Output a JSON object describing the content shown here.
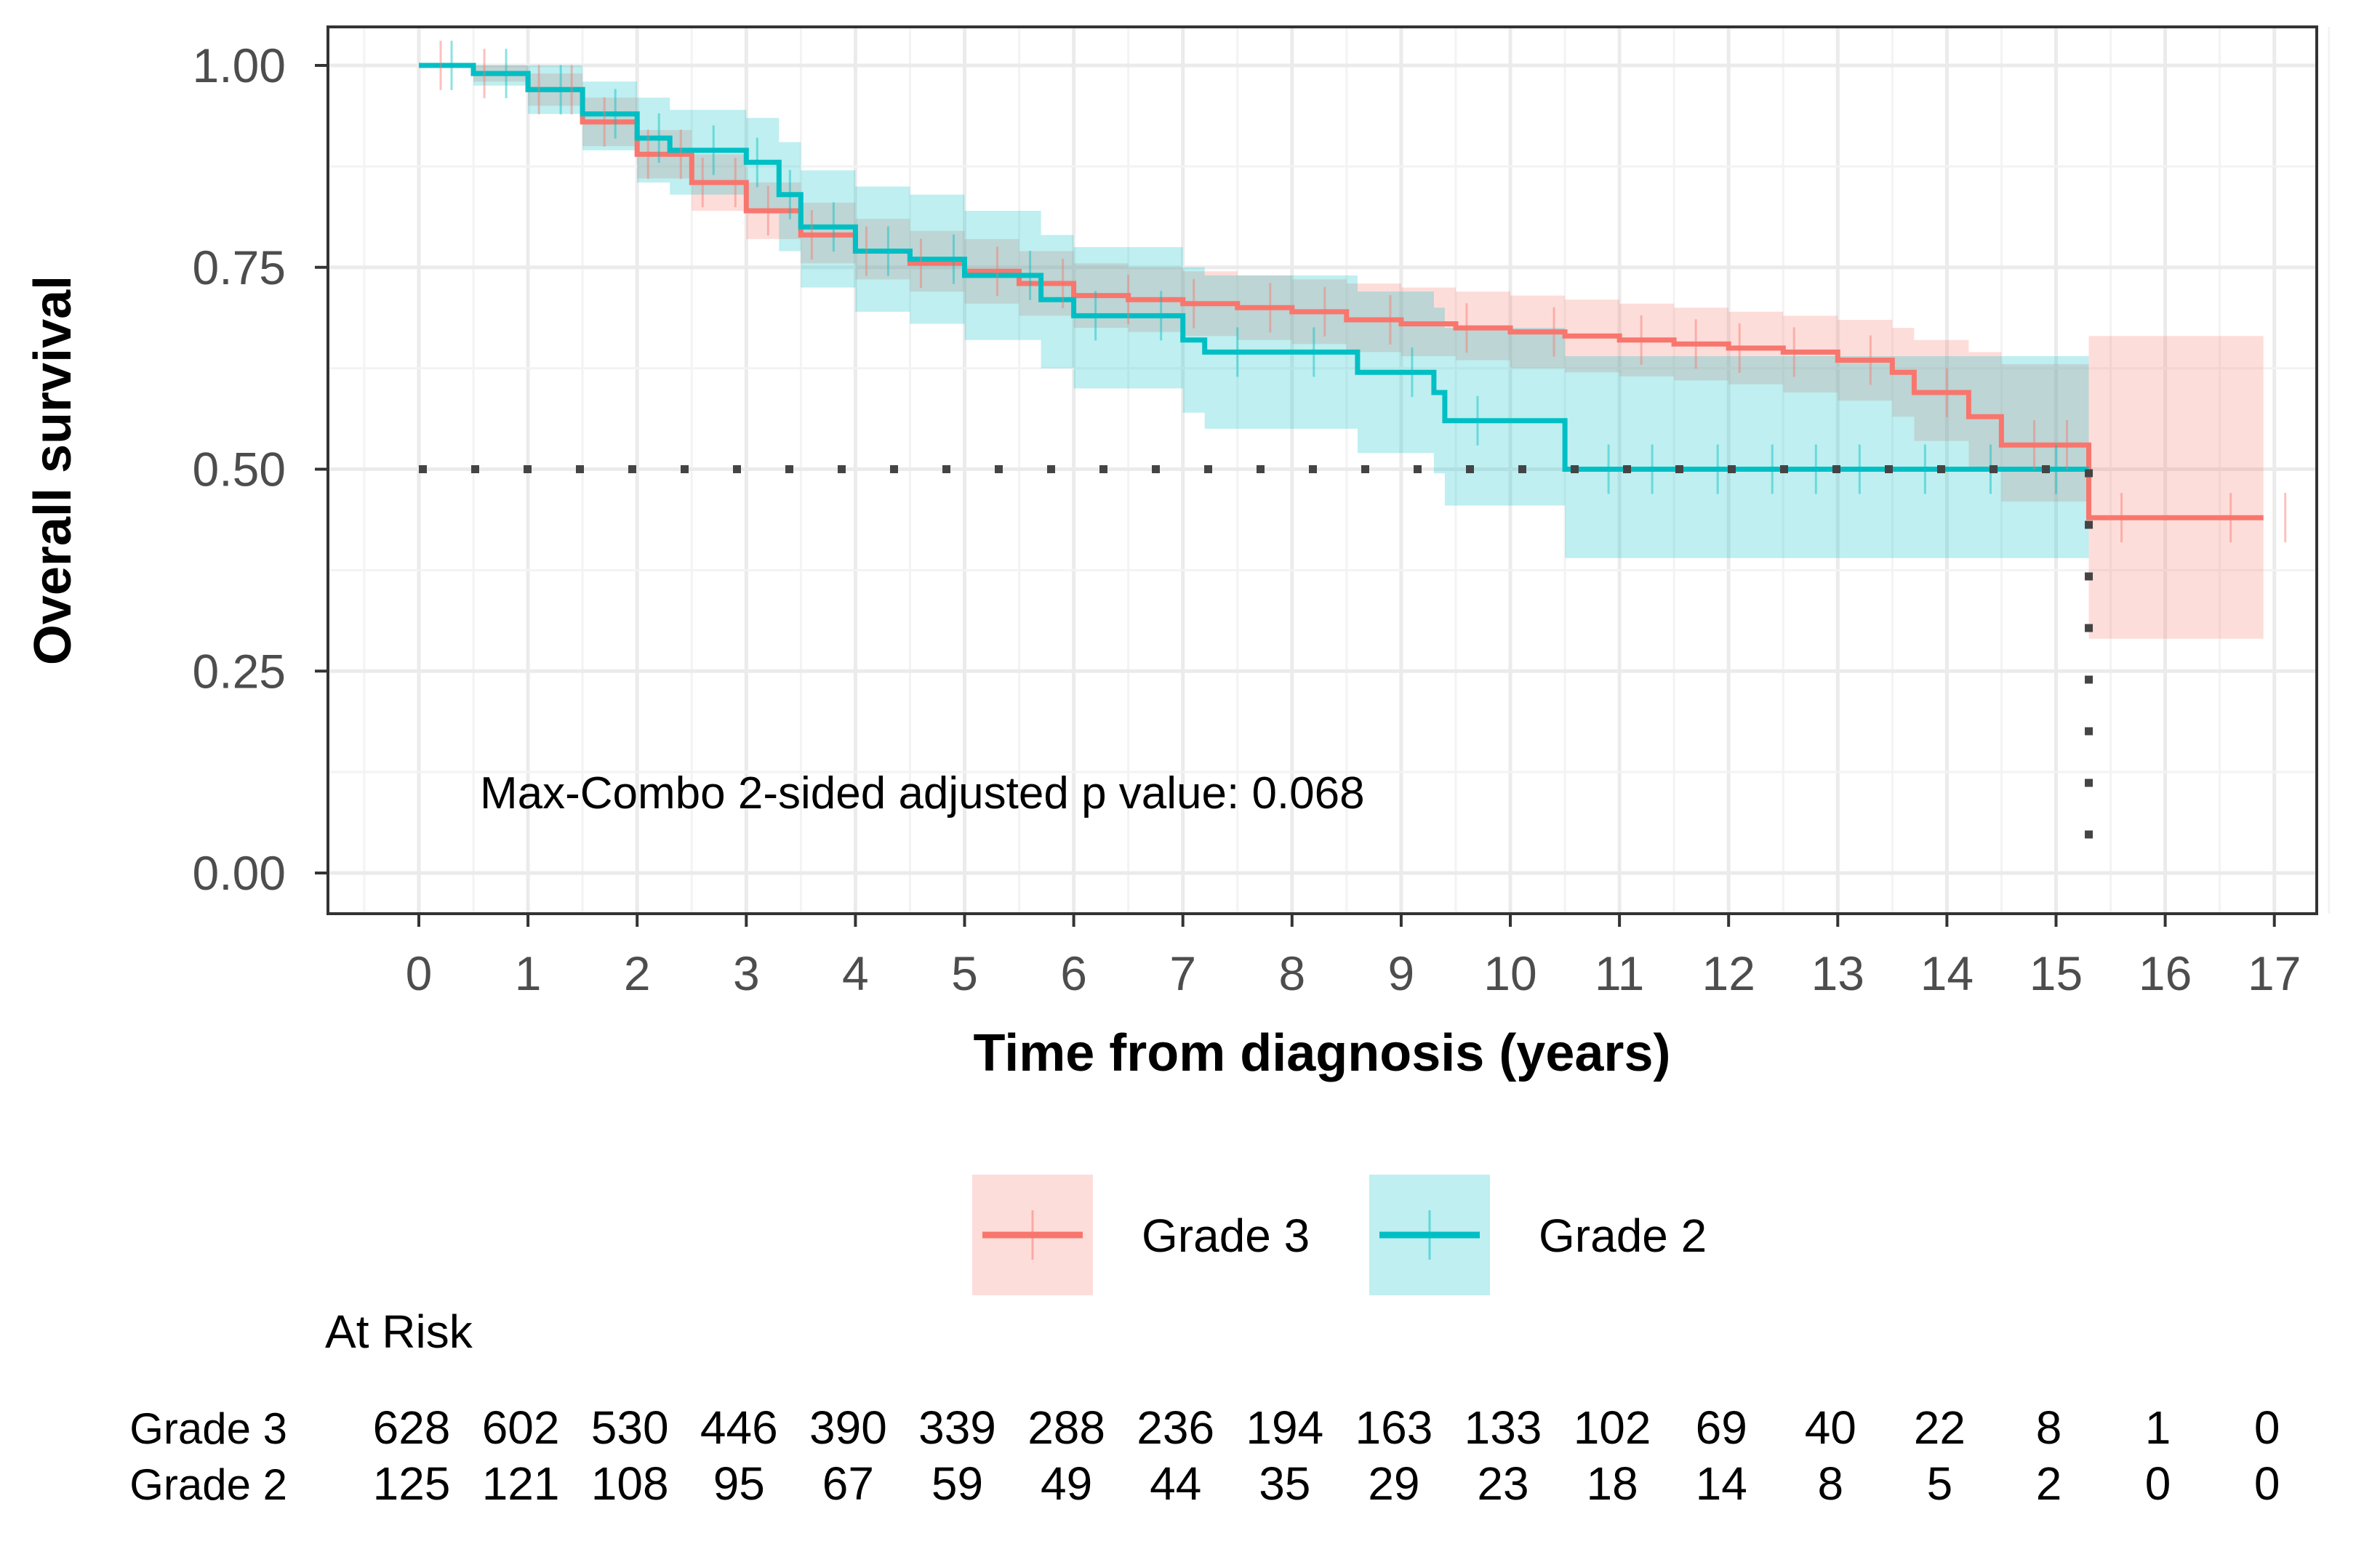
{
  "chart_data": {
    "type": "line",
    "subtype": "kaplan-meier",
    "title": "",
    "xlabel": "Time from diagnosis (years)",
    "ylabel": "Overall survival",
    "xlim": [
      -0.8,
      17.4
    ],
    "ylim": [
      -0.05,
      1.05
    ],
    "x_ticks": [
      "0",
      "1",
      "2",
      "3",
      "4",
      "5",
      "6",
      "7",
      "8",
      "9",
      "10",
      "11",
      "12",
      "13",
      "14",
      "15",
      "16",
      "17"
    ],
    "y_ticks": [
      "0.00",
      "0.25",
      "0.50",
      "0.75",
      "1.00"
    ],
    "grid": true,
    "annotation": "Max-Combo 2-sided adjusted p value: 0.068",
    "median_line": {
      "y": 0.5,
      "x_from": 0,
      "x_to": 15.3
    },
    "legend": {
      "position": "bottom",
      "entries": [
        "Grade 3",
        "Grade 2"
      ]
    },
    "series": [
      {
        "name": "Grade 3",
        "color": "#F8766D",
        "band_color": "#F8766D",
        "steps": [
          [
            0,
            1.0
          ],
          [
            0.5,
            0.99
          ],
          [
            1,
            0.97
          ],
          [
            1.5,
            0.93
          ],
          [
            2,
            0.89
          ],
          [
            2.5,
            0.855
          ],
          [
            3,
            0.82
          ],
          [
            3.5,
            0.79
          ],
          [
            4,
            0.77
          ],
          [
            4.5,
            0.755
          ],
          [
            5,
            0.745
          ],
          [
            5.5,
            0.73
          ],
          [
            6,
            0.715
          ],
          [
            6.5,
            0.71
          ],
          [
            7,
            0.705
          ],
          [
            7.5,
            0.7
          ],
          [
            8,
            0.695
          ],
          [
            8.5,
            0.685
          ],
          [
            9,
            0.68
          ],
          [
            9.5,
            0.675
          ],
          [
            10,
            0.67
          ],
          [
            10.5,
            0.665
          ],
          [
            11,
            0.66
          ],
          [
            11.5,
            0.655
          ],
          [
            12,
            0.65
          ],
          [
            12.5,
            0.645
          ],
          [
            13,
            0.635
          ],
          [
            13.5,
            0.62
          ],
          [
            13.7,
            0.595
          ],
          [
            14.2,
            0.565
          ],
          [
            14.5,
            0.53
          ],
          [
            15.3,
            0.44
          ],
          [
            16.9,
            0.44
          ]
        ],
        "upper": [
          [
            0,
            1.0
          ],
          [
            0.5,
            1.0
          ],
          [
            1,
            0.99
          ],
          [
            1.5,
            0.96
          ],
          [
            2,
            0.92
          ],
          [
            2.5,
            0.89
          ],
          [
            3,
            0.855
          ],
          [
            3.5,
            0.83
          ],
          [
            4,
            0.81
          ],
          [
            4.5,
            0.795
          ],
          [
            5,
            0.785
          ],
          [
            5.5,
            0.77
          ],
          [
            6,
            0.755
          ],
          [
            6.5,
            0.75
          ],
          [
            7,
            0.745
          ],
          [
            7.5,
            0.74
          ],
          [
            8,
            0.735
          ],
          [
            8.5,
            0.73
          ],
          [
            9,
            0.725
          ],
          [
            9.5,
            0.72
          ],
          [
            10,
            0.715
          ],
          [
            10.5,
            0.71
          ],
          [
            11,
            0.705
          ],
          [
            11.5,
            0.7
          ],
          [
            12,
            0.695
          ],
          [
            12.5,
            0.69
          ],
          [
            13,
            0.685
          ],
          [
            13.5,
            0.675
          ],
          [
            13.7,
            0.66
          ],
          [
            14.2,
            0.645
          ],
          [
            14.5,
            0.63
          ],
          [
            15.3,
            0.665
          ],
          [
            16.9,
            0.665
          ]
        ],
        "lower": [
          [
            0,
            1.0
          ],
          [
            0.5,
            0.98
          ],
          [
            1,
            0.95
          ],
          [
            1.5,
            0.9
          ],
          [
            2,
            0.86
          ],
          [
            2.5,
            0.82
          ],
          [
            3,
            0.785
          ],
          [
            3.5,
            0.755
          ],
          [
            4,
            0.735
          ],
          [
            4.5,
            0.72
          ],
          [
            5,
            0.705
          ],
          [
            5.5,
            0.69
          ],
          [
            6,
            0.675
          ],
          [
            6.5,
            0.67
          ],
          [
            7,
            0.665
          ],
          [
            7.5,
            0.66
          ],
          [
            8,
            0.655
          ],
          [
            8.5,
            0.645
          ],
          [
            9,
            0.64
          ],
          [
            9.5,
            0.635
          ],
          [
            10,
            0.625
          ],
          [
            10.5,
            0.62
          ],
          [
            11,
            0.615
          ],
          [
            11.5,
            0.61
          ],
          [
            12,
            0.605
          ],
          [
            12.5,
            0.595
          ],
          [
            13,
            0.585
          ],
          [
            13.5,
            0.565
          ],
          [
            13.7,
            0.535
          ],
          [
            14.2,
            0.5
          ],
          [
            14.5,
            0.46
          ],
          [
            15.3,
            0.29
          ],
          [
            16.9,
            0.29
          ]
        ],
        "censor_x": [
          0.2,
          0.6,
          1.1,
          1.4,
          1.7,
          2.1,
          2.4,
          2.6,
          2.9,
          3.2,
          3.6,
          4.1,
          4.6,
          5.3,
          5.9,
          6.5,
          7.1,
          7.8,
          8.3,
          8.9,
          9.6,
          10.4,
          11.2,
          11.7,
          12.1,
          12.6,
          13.3,
          14.0,
          14.8,
          15.1,
          15.6,
          16.6,
          17.1
        ]
      },
      {
        "name": "Grade 2",
        "color": "#00BFC4",
        "band_color": "#00BFC4",
        "steps": [
          [
            0,
            1.0
          ],
          [
            0.5,
            0.99
          ],
          [
            1,
            0.97
          ],
          [
            1.5,
            0.94
          ],
          [
            2,
            0.91
          ],
          [
            2.3,
            0.895
          ],
          [
            3,
            0.88
          ],
          [
            3.3,
            0.84
          ],
          [
            3.5,
            0.8
          ],
          [
            4,
            0.77
          ],
          [
            4.5,
            0.76
          ],
          [
            5,
            0.74
          ],
          [
            5.7,
            0.71
          ],
          [
            6,
            0.69
          ],
          [
            6.5,
            0.69
          ],
          [
            7,
            0.66
          ],
          [
            7.2,
            0.645
          ],
          [
            8,
            0.645
          ],
          [
            8.6,
            0.62
          ],
          [
            9.3,
            0.595
          ],
          [
            9.4,
            0.56
          ],
          [
            10.5,
            0.5
          ],
          [
            15.3,
            0.5
          ]
        ],
        "upper": [
          [
            0,
            1.0
          ],
          [
            0.5,
            1.0
          ],
          [
            1,
            1.0
          ],
          [
            1.5,
            0.98
          ],
          [
            2,
            0.96
          ],
          [
            2.3,
            0.945
          ],
          [
            3,
            0.935
          ],
          [
            3.3,
            0.905
          ],
          [
            3.5,
            0.87
          ],
          [
            4,
            0.85
          ],
          [
            4.5,
            0.84
          ],
          [
            5,
            0.82
          ],
          [
            5.7,
            0.79
          ],
          [
            6,
            0.775
          ],
          [
            6.5,
            0.775
          ],
          [
            7,
            0.75
          ],
          [
            7.2,
            0.74
          ],
          [
            8,
            0.74
          ],
          [
            8.6,
            0.72
          ],
          [
            9.3,
            0.7
          ],
          [
            9.4,
            0.675
          ],
          [
            10.5,
            0.64
          ],
          [
            15.3,
            0.64
          ]
        ],
        "lower": [
          [
            0,
            1.0
          ],
          [
            0.5,
            0.975
          ],
          [
            1,
            0.94
          ],
          [
            1.5,
            0.895
          ],
          [
            2,
            0.855
          ],
          [
            2.3,
            0.84
          ],
          [
            3,
            0.82
          ],
          [
            3.3,
            0.77
          ],
          [
            3.5,
            0.725
          ],
          [
            4,
            0.695
          ],
          [
            4.5,
            0.68
          ],
          [
            5,
            0.66
          ],
          [
            5.7,
            0.625
          ],
          [
            6,
            0.6
          ],
          [
            6.5,
            0.6
          ],
          [
            7,
            0.57
          ],
          [
            7.2,
            0.55
          ],
          [
            8,
            0.55
          ],
          [
            8.6,
            0.52
          ],
          [
            9.3,
            0.495
          ],
          [
            9.4,
            0.455
          ],
          [
            10.5,
            0.39
          ],
          [
            15.3,
            0.39
          ]
        ],
        "censor_x": [
          0.3,
          0.8,
          1.3,
          1.8,
          2.2,
          2.7,
          3.1,
          3.4,
          3.8,
          4.3,
          4.9,
          5.6,
          6.2,
          6.8,
          7.5,
          8.2,
          9.1,
          9.7,
          10.9,
          11.3,
          11.9,
          12.4,
          12.8,
          13.2,
          13.8,
          14.4,
          15.0
        ]
      }
    ],
    "at_risk": {
      "title": "At Risk",
      "rows": [
        {
          "label": "Grade 3",
          "values": [
            "628",
            "602",
            "530",
            "446",
            "390",
            "339",
            "288",
            "236",
            "194",
            "163",
            "133",
            "102",
            "69",
            "40",
            "22",
            "8",
            "1",
            "0"
          ]
        },
        {
          "label": "Grade 2",
          "values": [
            "125",
            "121",
            "108",
            "95",
            "67",
            "59",
            "49",
            "44",
            "35",
            "29",
            "23",
            "18",
            "14",
            "8",
            "5",
            "2",
            "0",
            "0"
          ]
        }
      ]
    }
  }
}
